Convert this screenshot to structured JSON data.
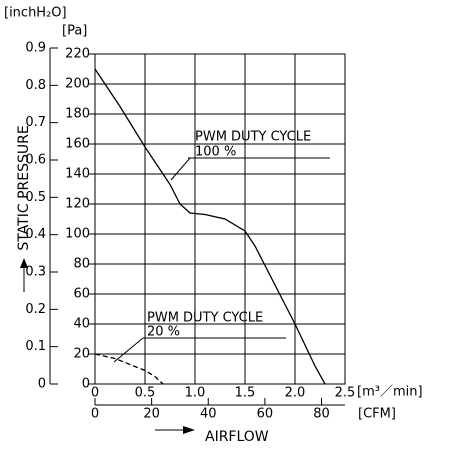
{
  "chart_data": {
    "type": "line",
    "y_unit_label": "[Pa]",
    "y2_unit_label": "[inchH₂O]",
    "y_label": "STATIC PRESSURE",
    "x_unit_label": "[m³／min]",
    "x2_unit_label": "[CFM]",
    "x_label": "AIRFLOW",
    "annotation": "PWM DUTY CYCLE",
    "xlim": [
      0,
      2.5
    ],
    "xticks": [
      0,
      0.5,
      {
        "value": 1,
        "label": "1.0"
      },
      1.5,
      {
        "value": 2,
        "label": "2.0"
      },
      2.5
    ],
    "x2lim": [
      0,
      88.29
    ],
    "x2ticks": [
      0,
      20,
      40,
      60,
      80
    ],
    "ylim": [
      0,
      220
    ],
    "yticks": [
      0,
      20,
      40,
      60,
      80,
      100,
      120,
      140,
      160,
      180,
      200,
      220
    ],
    "y2lim": [
      0,
      0.9
    ],
    "y2ticks": [
      0,
      0.1,
      0.2,
      0.3,
      0.4,
      0.5,
      0.6,
      0.7,
      0.8,
      0.9
    ],
    "grid": true,
    "series": [
      {
        "name": "100 %",
        "color": "#000000",
        "dashed": false,
        "x": [
          0,
          0.25,
          0.5,
          0.75,
          0.85,
          0.95,
          1.1,
          1.3,
          1.5,
          1.6,
          1.8,
          2.0,
          2.2,
          2.3
        ],
        "values": [
          210,
          185,
          158,
          133,
          120,
          114,
          113,
          110,
          102,
          92,
          66,
          40,
          12,
          0
        ]
      },
      {
        "name": "20 %",
        "color": "#000000",
        "dashed": true,
        "x": [
          0,
          0.2,
          0.35,
          0.5,
          0.6,
          0.68
        ],
        "values": [
          20,
          17,
          13,
          9,
          5,
          0
        ]
      }
    ]
  }
}
